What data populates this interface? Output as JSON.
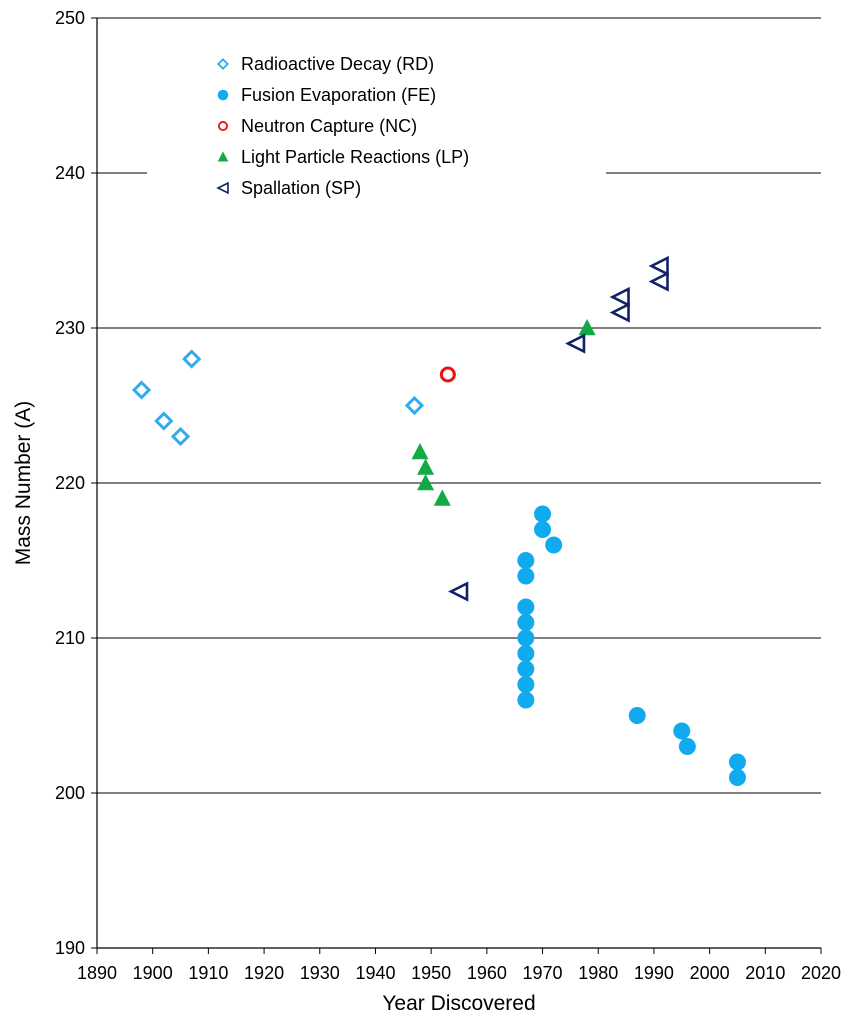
{
  "chart_data": {
    "type": "scatter",
    "title": "",
    "xlabel": "Year Discovered",
    "ylabel": "Mass Number (A)",
    "xlim": [
      1890,
      2020
    ],
    "ylim": [
      190,
      250
    ],
    "x_ticks": [
      1890,
      1900,
      1910,
      1920,
      1930,
      1940,
      1950,
      1960,
      1970,
      1980,
      1990,
      2000,
      2010,
      2020
    ],
    "y_ticks": [
      190,
      200,
      210,
      220,
      230,
      240,
      250
    ],
    "grid": "horizontal",
    "legend_position": "top-left",
    "series": [
      {
        "name": "Radioactive Decay (RD)",
        "marker": "diamond-open",
        "color": "#33aaee",
        "points": [
          [
            1898,
            226
          ],
          [
            1902,
            224
          ],
          [
            1905,
            223
          ],
          [
            1907,
            228
          ],
          [
            1947,
            225
          ]
        ]
      },
      {
        "name": "Fusion Evaporation (FE)",
        "marker": "circle-filled",
        "color": "#11aaee",
        "points": [
          [
            1967,
            215
          ],
          [
            1967,
            214
          ],
          [
            1967,
            212
          ],
          [
            1967,
            211
          ],
          [
            1967,
            210
          ],
          [
            1967,
            209
          ],
          [
            1967,
            208
          ],
          [
            1967,
            207
          ],
          [
            1967,
            206
          ],
          [
            1970,
            218
          ],
          [
            1970,
            217
          ],
          [
            1972,
            216
          ],
          [
            1987,
            205
          ],
          [
            1995,
            204
          ],
          [
            1996,
            203
          ],
          [
            2005,
            202
          ],
          [
            2005,
            201
          ]
        ]
      },
      {
        "name": "Neutron Capture (NC)",
        "marker": "circle-open",
        "color": "#ee1111",
        "points": [
          [
            1953,
            227
          ]
        ]
      },
      {
        "name": "Light Particle Reactions (LP)",
        "marker": "triangle-filled",
        "color": "#11aa44",
        "points": [
          [
            1948,
            222
          ],
          [
            1949,
            221
          ],
          [
            1949,
            220
          ],
          [
            1952,
            219
          ],
          [
            1978,
            230
          ]
        ]
      },
      {
        "name": "Spallation (SP)",
        "marker": "triangle-left-open",
        "color": "#112266",
        "points": [
          [
            1955,
            213
          ],
          [
            1976,
            229
          ],
          [
            1984,
            232
          ],
          [
            1984,
            231
          ],
          [
            1991,
            234
          ],
          [
            1991,
            233
          ]
        ]
      }
    ]
  }
}
